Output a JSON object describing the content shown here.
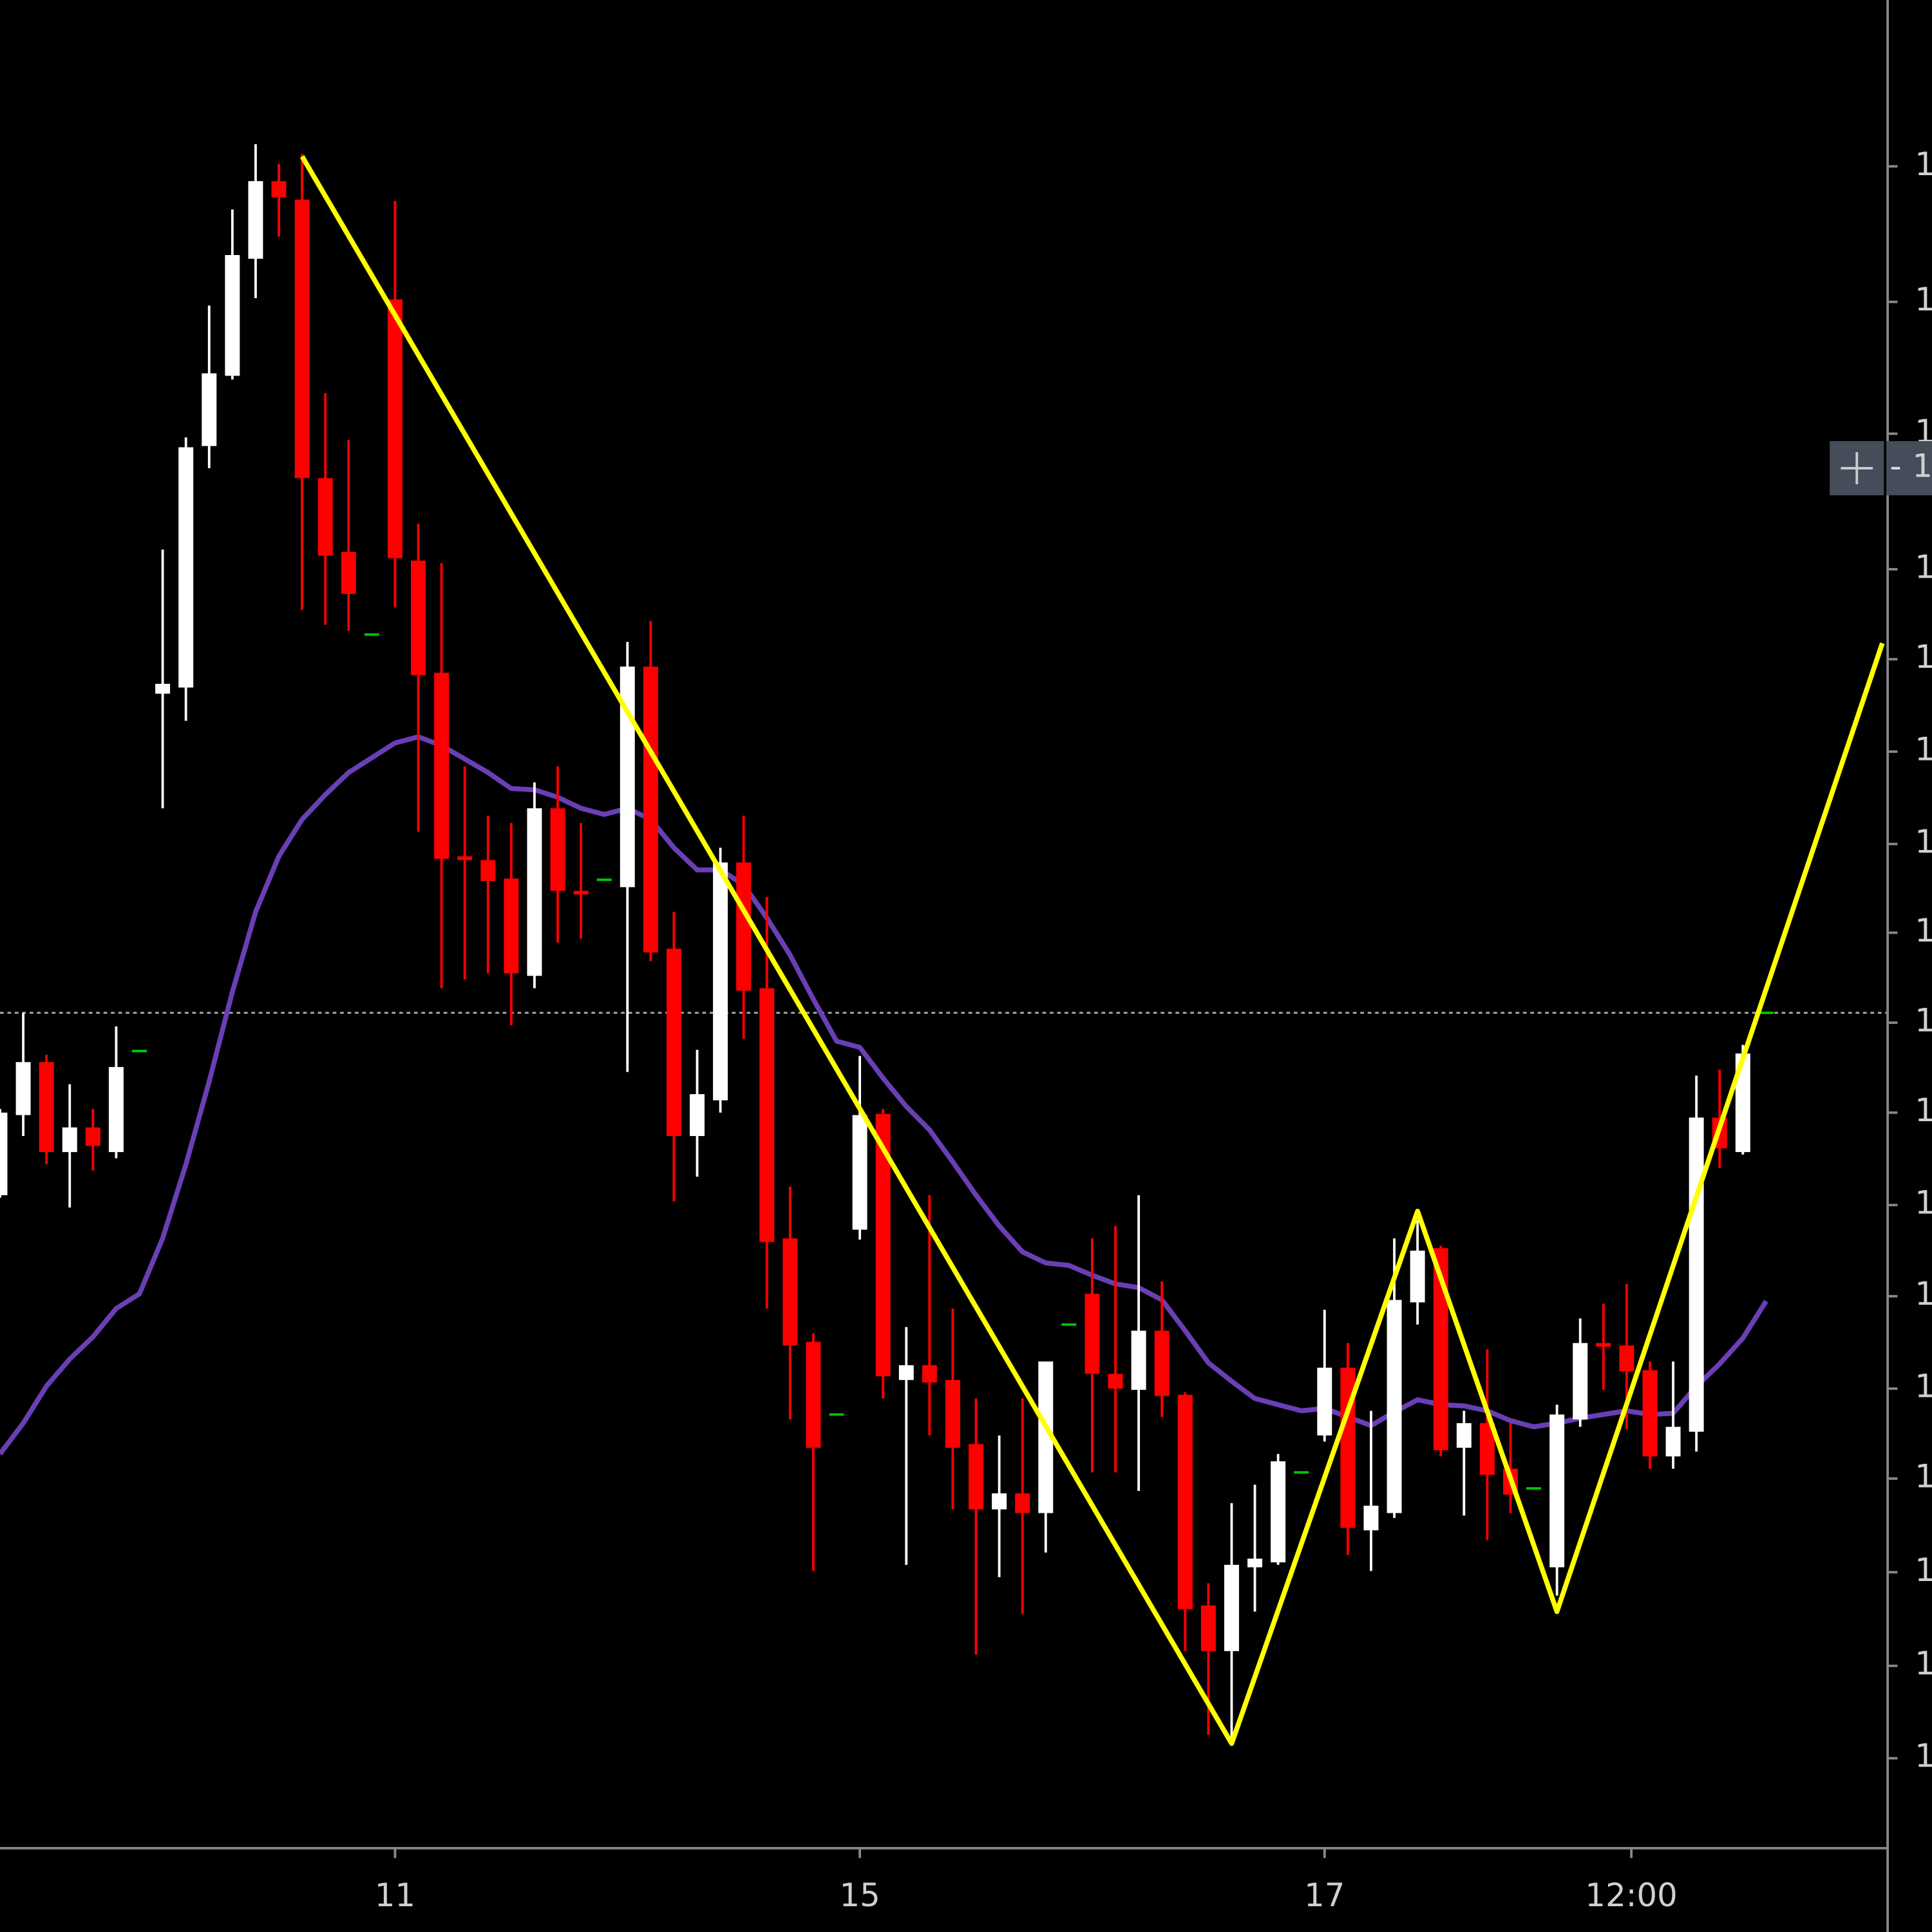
{
  "chart_data": {
    "type": "candlestick",
    "colors": {
      "up": "#ffffff",
      "down": "#ff0000",
      "doji": "#00c800"
    },
    "open": [
      53.0,
      59.5,
      63.8,
      56.5,
      58.5,
      56.5,
      64.7,
      93.7,
      94.2,
      113.8,
      119.5,
      129.0,
      135.3,
      133.8,
      111.2,
      105.2,
      98.5,
      125.7,
      104.5,
      95.4,
      80.5,
      80.2,
      78.7,
      70.8,
      84.4,
      77.7,
      78.6,
      78.0,
      95.9,
      73.0,
      57.8,
      60.7,
      80.0,
      69.8,
      49.5,
      41.1,
      35.2,
      50.2,
      59.6,
      38.0,
      39.2,
      38.0,
      32.8,
      27.5,
      28.8,
      27.2,
      42.5,
      45.0,
      38.5,
      37.2,
      42.0,
      36.8,
      19.7,
      16.0,
      22.8,
      23.2,
      30.5,
      33.5,
      39.0,
      25.8,
      27.2,
      44.3,
      48.7,
      32.5,
      34.5,
      30.8,
      29.2,
      22.8,
      34.8,
      41.0,
      40.8,
      38.8,
      31.8,
      33.8,
      59.3,
      56.5,
      67.8
    ],
    "high": [
      60.0,
      67.8,
      64.4,
      62.0,
      60.0,
      66.7,
      64.7,
      105.4,
      114.5,
      125.2,
      133.0,
      138.3,
      136.7,
      137.5,
      118.1,
      114.3,
      98.5,
      133.7,
      107.5,
      104.3,
      87.8,
      83.8,
      83.2,
      86.5,
      87.8,
      83.2,
      78.6,
      97.9,
      99.6,
      76.0,
      64.8,
      81.2,
      83.8,
      77.2,
      53.7,
      41.8,
      35.2,
      64.3,
      60.0,
      42.3,
      53.0,
      43.8,
      36.5,
      33.5,
      36.5,
      39.5,
      42.5,
      49.5,
      50.5,
      53.0,
      46.0,
      37.0,
      21.5,
      28.0,
      29.5,
      32.0,
      30.5,
      43.7,
      41.0,
      35.5,
      49.5,
      51.0,
      48.9,
      35.5,
      40.5,
      34.5,
      29.2,
      36.0,
      43.0,
      44.2,
      45.8,
      39.5,
      39.5,
      62.7,
      63.2,
      65.2,
      67.8
    ],
    "low": [
      52.8,
      57.8,
      55.5,
      52.0,
      55.0,
      56.0,
      64.7,
      84.4,
      91.5,
      112.0,
      119.2,
      125.8,
      130.8,
      100.5,
      99.3,
      98.8,
      98.5,
      100.7,
      82.5,
      69.8,
      70.5,
      71.0,
      66.8,
      69.8,
      73.5,
      73.8,
      78.6,
      63.0,
      72.0,
      52.5,
      54.5,
      59.7,
      65.7,
      43.8,
      34.8,
      22.5,
      35.2,
      49.4,
      36.5,
      23.0,
      33.5,
      27.5,
      15.7,
      22.0,
      19.0,
      24.0,
      42.5,
      30.5,
      30.5,
      29.0,
      35.0,
      16.0,
      9.2,
      9.0,
      19.2,
      23.0,
      30.5,
      33.0,
      23.8,
      22.5,
      26.8,
      42.5,
      31.8,
      27.0,
      25.0,
      27.2,
      29.2,
      20.5,
      34.2,
      37.2,
      34.0,
      30.8,
      30.8,
      32.2,
      55.2,
      56.3,
      67.8
    ],
    "close": [
      59.7,
      63.8,
      56.5,
      58.5,
      57.0,
      63.4,
      64.7,
      94.5,
      113.7,
      119.7,
      129.3,
      135.3,
      134.0,
      111.2,
      104.9,
      101.8,
      98.5,
      104.7,
      95.2,
      80.3,
      80.2,
      78.5,
      71.0,
      84.4,
      77.7,
      77.4,
      78.6,
      95.9,
      72.7,
      57.8,
      61.2,
      80.0,
      69.6,
      49.2,
      40.8,
      32.5,
      35.2,
      59.5,
      38.3,
      39.2,
      37.8,
      32.5,
      27.5,
      28.8,
      27.2,
      39.5,
      42.5,
      38.5,
      37.3,
      42.0,
      36.7,
      19.4,
      16.0,
      23.0,
      23.5,
      31.4,
      30.5,
      39.0,
      26.0,
      27.8,
      44.5,
      48.5,
      32.3,
      34.5,
      30.3,
      28.7,
      29.2,
      35.2,
      41.0,
      40.7,
      38.7,
      31.8,
      34.2,
      59.3,
      56.8,
      64.5,
      67.8
    ],
    "overlays": [
      {
        "type": "line",
        "color": "#6a3fb5",
        "values": [
          32.0,
          34.5,
          37.5,
          39.7,
          41.5,
          43.8,
          45.0,
          49.5,
          55.5,
          62.2,
          69.5,
          76.0,
          80.5,
          83.5,
          85.5,
          87.3,
          88.5,
          89.7,
          90.2,
          89.5,
          88.4,
          87.3,
          86.0,
          85.9,
          85.3,
          84.4,
          83.9,
          84.4,
          83.5,
          81.2,
          79.4,
          79.4,
          78.2,
          75.5,
          72.5,
          68.9,
          65.5,
          65.0,
          62.5,
          60.2,
          58.3,
          55.7,
          53.0,
          50.5,
          48.4,
          47.5,
          47.3,
          46.5,
          45.8,
          45.5,
          44.5,
          42.0,
          39.4,
          37.9,
          36.5,
          36.0,
          35.5,
          35.7,
          35.0,
          34.3,
          35.4,
          36.4,
          36.0,
          35.9,
          35.5,
          34.7,
          34.2,
          34.5,
          34.9,
          35.2,
          35.5,
          35.2,
          35.3,
          37.5,
          39.3,
          41.4,
          44.4
        ]
      },
      {
        "type": "line",
        "color": "#ffff00",
        "x": [
          13,
          53,
          61,
          67,
          81
        ],
        "values": [
          137.3,
          8.5,
          51.7,
          19.2,
          97.8
        ]
      }
    ],
    "price_line": 67.8,
    "crosshair": {
      "value": 112.0,
      "label": "1"
    },
    "xlim": [
      0,
      81.23
    ],
    "xticks": [
      {
        "value": 17,
        "label": "11"
      },
      {
        "value": 37,
        "label": "15"
      },
      {
        "value": 57,
        "label": "17"
      },
      {
        "value": 70.2,
        "label": "12:00"
      }
    ],
    "ylim": [
      0,
      150
    ],
    "yticks": [
      {
        "value": 136.5,
        "label": "1"
      },
      {
        "value": 125.5,
        "label": "1"
      },
      {
        "value": 114.8,
        "label": "1"
      },
      {
        "value": 103.8,
        "label": "1"
      },
      {
        "value": 96.5,
        "label": "1"
      },
      {
        "value": 89.0,
        "label": "1"
      },
      {
        "value": 81.5,
        "label": "1"
      },
      {
        "value": 74.3,
        "label": "1"
      },
      {
        "value": 67.0,
        "label": "1"
      },
      {
        "value": 59.7,
        "label": "1"
      },
      {
        "value": 52.2,
        "label": "1"
      },
      {
        "value": 44.8,
        "label": "1"
      },
      {
        "value": 37.3,
        "label": "1"
      },
      {
        "value": 30.0,
        "label": "1"
      },
      {
        "value": 22.4,
        "label": "1"
      },
      {
        "value": 14.8,
        "label": "1"
      },
      {
        "value": 7.3,
        "label": "1"
      }
    ]
  }
}
